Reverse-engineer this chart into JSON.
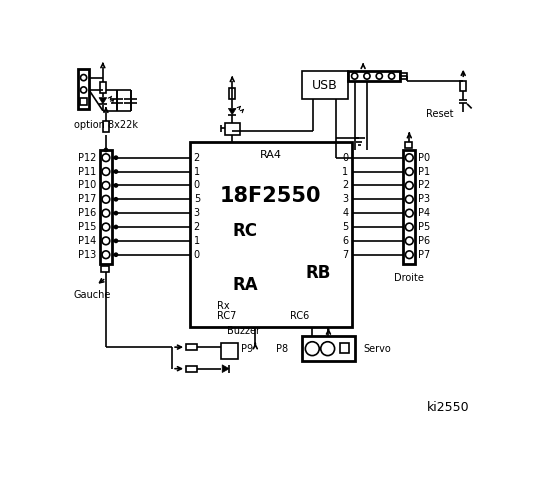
{
  "bg_color": "#ffffff",
  "text_color": "#000000",
  "chip_label": "18F2550",
  "chip_sublabel": "RA4",
  "left_connector_pins": [
    "P12",
    "P11",
    "P10",
    "P17",
    "P16",
    "P15",
    "P14",
    "P13"
  ],
  "right_connector_pins": [
    "P0",
    "P1",
    "P2",
    "P3",
    "P4",
    "P5",
    "P6",
    "P7"
  ],
  "rc_pins": [
    "2",
    "1",
    "0",
    "5",
    "3",
    "2",
    "1",
    "0"
  ],
  "rb_pins": [
    "0",
    "1",
    "2",
    "3",
    "4",
    "5",
    "6",
    "7"
  ],
  "left_label": "Gauche",
  "right_label": "Droite",
  "rc_label": "RC",
  "ra_label": "RA",
  "rb_label": "RB",
  "rx_label": "Rx",
  "rc7_label": "RC7",
  "rc6_label": "RC6",
  "usb_label": "USB",
  "reset_label": "Reset",
  "option_label": "option 8x22k",
  "buzzer_label": "Buzzer",
  "p9_label": "P9",
  "p8_label": "P8",
  "servo_label": "Servo",
  "sig_label": "ki2550"
}
